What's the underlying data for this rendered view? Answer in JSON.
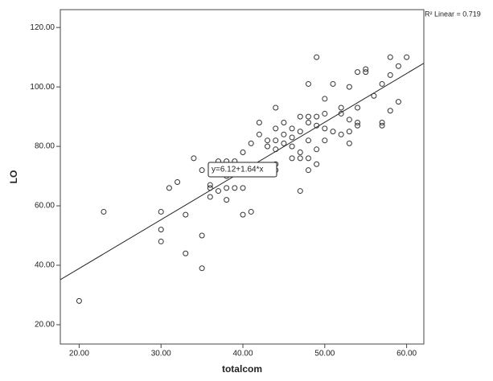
{
  "chart_data": {
    "type": "scatter",
    "x_label": "totalcom",
    "y_label": "LO",
    "annotation": "y=6.12+1.64*x",
    "fit_label": "R² Linear = 0.719",
    "fit": {
      "intercept": 6.12,
      "slope": 1.64
    },
    "xlim": [
      17.7,
      62.1
    ],
    "ylim": [
      13.5,
      126
    ],
    "xticks": [
      {
        "value": 20,
        "label": "20.00"
      },
      {
        "value": 30,
        "label": "30.00"
      },
      {
        "value": 40,
        "label": "40.00"
      },
      {
        "value": 50,
        "label": "50.00"
      },
      {
        "value": 60,
        "label": "60.00"
      }
    ],
    "yticks": [
      {
        "value": 20,
        "label": "20.00"
      },
      {
        "value": 40,
        "label": "40.00"
      },
      {
        "value": 60,
        "label": "60.00"
      },
      {
        "value": 80,
        "label": "80.00"
      },
      {
        "value": 100,
        "label": "100.00"
      },
      {
        "value": 120,
        "label": "120.00"
      }
    ],
    "series": [
      {
        "color": "#333333",
        "x": [
          20,
          23,
          30,
          30,
          30,
          31,
          32,
          33,
          33,
          34,
          35,
          35,
          35,
          36,
          36,
          36,
          37,
          37,
          38,
          38,
          38,
          38,
          39,
          39,
          40,
          40,
          40,
          41,
          41,
          42,
          42,
          43,
          43,
          44,
          44,
          44,
          44,
          44,
          44,
          45,
          45,
          45,
          46,
          46,
          46,
          46,
          47,
          47,
          47,
          47,
          47,
          48,
          48,
          48,
          48,
          48,
          48,
          49,
          49,
          49,
          49,
          49,
          50,
          50,
          50,
          50,
          51,
          51,
          52,
          52,
          52,
          53,
          53,
          53,
          53,
          54,
          54,
          54,
          54,
          55,
          55,
          56,
          57,
          57,
          57,
          58,
          58,
          58,
          59,
          59,
          60
        ],
        "values": [
          28,
          58,
          58,
          52,
          48,
          66,
          68,
          57,
          44,
          76,
          72,
          50,
          39,
          67,
          66,
          63,
          75,
          65,
          75,
          70,
          66,
          62,
          75,
          66,
          78,
          66,
          57,
          58,
          81,
          88,
          84,
          82,
          80,
          93,
          86,
          82,
          79,
          74,
          72,
          88,
          84,
          81,
          86,
          83,
          80,
          76,
          90,
          85,
          78,
          76,
          65,
          101,
          90,
          88,
          82,
          76,
          72,
          110,
          90,
          87,
          79,
          74,
          96,
          91,
          86,
          82,
          101,
          85,
          93,
          91,
          84,
          100,
          89,
          85,
          81,
          105,
          93,
          88,
          87,
          106,
          105,
          97,
          101,
          88,
          87,
          110,
          104,
          92,
          107,
          95,
          110
        ]
      }
    ]
  }
}
